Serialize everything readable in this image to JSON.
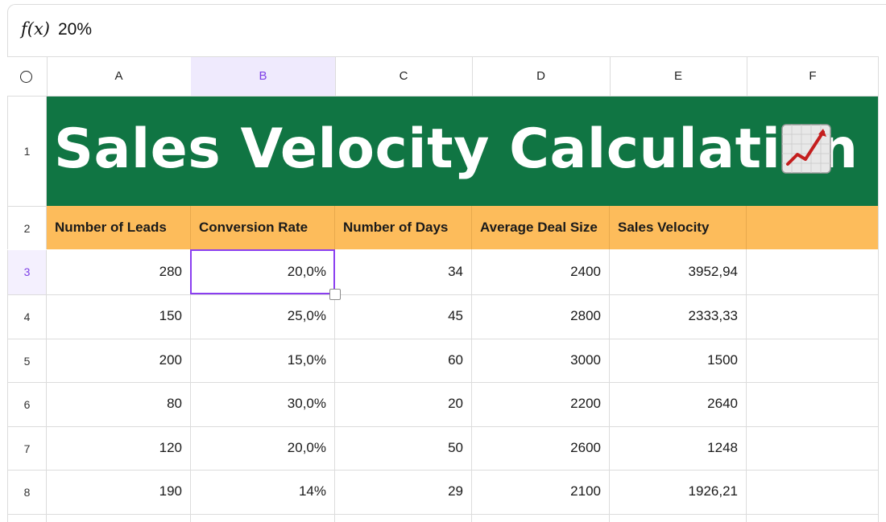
{
  "formula_bar": {
    "label": "f(x)",
    "value": "20%"
  },
  "columns": [
    "A",
    "B",
    "C",
    "D",
    "E",
    "F"
  ],
  "selected_column": "B",
  "rows": [
    "1",
    "2",
    "3",
    "4",
    "5",
    "6",
    "7",
    "8"
  ],
  "selected_row": "3",
  "title": "Sales Velocity Calculation",
  "title_icon": "chart-increasing-emoji",
  "headers": [
    "Number of Leads",
    "Conversion Rate",
    "Number of Days",
    "Average Deal Size",
    "Sales Velocity"
  ],
  "data_rows": [
    [
      "280",
      "20,0%",
      "34",
      "2400",
      "3952,94"
    ],
    [
      "150",
      "25,0%",
      "45",
      "2800",
      "2333,33"
    ],
    [
      "200",
      "15,0%",
      "60",
      "3000",
      "1500"
    ],
    [
      "80",
      "30,0%",
      "20",
      "2200",
      "2640"
    ],
    [
      "120",
      "20,0%",
      "50",
      "2600",
      "1248"
    ],
    [
      "190",
      "14%",
      "29",
      "2100",
      "1926,21"
    ]
  ],
  "colors": {
    "title_band": "#107543",
    "header_band": "#fdbc5b",
    "selection": "#8a3ef0"
  }
}
